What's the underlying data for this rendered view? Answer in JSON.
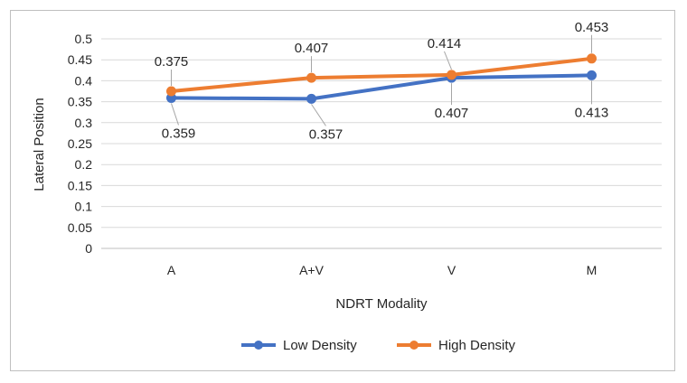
{
  "chart_data": {
    "type": "line",
    "title": "",
    "xlabel": "NDRT Modality",
    "ylabel": "Lateral Position",
    "categories": [
      "A",
      "A+V",
      "V",
      "M"
    ],
    "ylim": [
      0,
      0.5
    ],
    "yticks": [
      "0",
      "0.05",
      "0.1",
      "0.15",
      "0.2",
      "0.25",
      "0.3",
      "0.35",
      "0.4",
      "0.45",
      "0.5"
    ],
    "grid": true,
    "legend_position": "bottom",
    "series": [
      {
        "name": "Low Density",
        "color": "#4472c4",
        "values": [
          0.359,
          0.357,
          0.407,
          0.413
        ],
        "labels": [
          "0.359",
          "0.357",
          "0.407",
          "0.413"
        ],
        "label_position": "below"
      },
      {
        "name": "High Density",
        "color": "#ed7d31",
        "values": [
          0.375,
          0.407,
          0.414,
          0.453
        ],
        "labels": [
          "0.375",
          "0.407",
          "0.414",
          "0.453"
        ],
        "label_position": "above"
      }
    ]
  }
}
